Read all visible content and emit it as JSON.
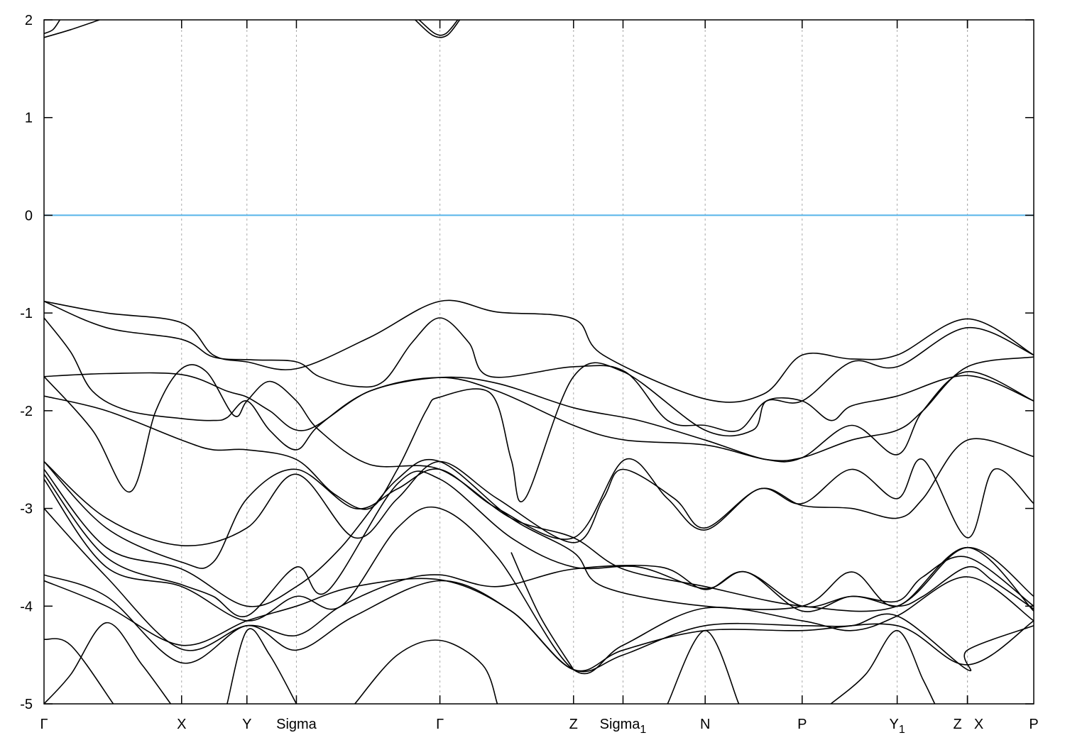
{
  "chart_data": {
    "type": "line",
    "title": "",
    "xlabel": "",
    "ylabel": "",
    "ylim": [
      -5,
      2
    ],
    "xlim": [
      0,
      1
    ],
    "yticks": [
      -5,
      -4,
      -3,
      -2,
      -1,
      0,
      1,
      2
    ],
    "xticks": [
      {
        "k": 0,
        "label": "Γ",
        "sub": ""
      },
      {
        "k": 0.139,
        "label": "X",
        "sub": ""
      },
      {
        "k": 0.205,
        "label": "Y",
        "sub": ""
      },
      {
        "k": 0.255,
        "label": "Sigma",
        "sub": ""
      },
      {
        "k": 0.4,
        "label": "Γ",
        "sub": ""
      },
      {
        "k": 0.535,
        "label": "Z",
        "sub": ""
      },
      {
        "k": 0.585,
        "label": "Sigma",
        "sub": "1"
      },
      {
        "k": 0.668,
        "label": "N",
        "sub": ""
      },
      {
        "k": 0.766,
        "label": "P",
        "sub": ""
      },
      {
        "k": 0.862,
        "label": "Y",
        "sub": "1"
      },
      {
        "k": 0.933,
        "label": "Z",
        "sub": "",
        "shift": "left"
      },
      {
        "k": 0.933,
        "label": "X",
        "sub": "",
        "shift": "right"
      },
      {
        "k": 1.0,
        "label": "P",
        "sub": ""
      }
    ],
    "grid": "vertical dashed at high-symmetry points",
    "fermi_level": 0,
    "colors": {
      "bands": "#000000",
      "fermi": "#56b4e9",
      "grid": "#aaaaaa"
    },
    "bands": [
      [
        [
          0,
          1.82
        ],
        [
          0.027,
          1.9
        ],
        [
          0.056,
          2.0
        ]
      ],
      [
        [
          0,
          1.86
        ],
        [
          0.009,
          1.9
        ],
        [
          0.016,
          2.0
        ]
      ],
      [
        [
          0.375,
          2.0
        ],
        [
          0.393,
          1.84
        ],
        [
          0.407,
          1.84
        ],
        [
          0.42,
          2.0
        ]
      ],
      [
        [
          0.379,
          2.0
        ],
        [
          0.395,
          1.86
        ],
        [
          0.406,
          1.86
        ],
        [
          0.418,
          2.0
        ]
      ],
      [
        [
          0,
          -0.88
        ],
        [
          0.063,
          -1.0
        ],
        [
          0.139,
          -1.1
        ],
        [
          0.171,
          -1.43
        ],
        [
          0.205,
          -1.5
        ],
        [
          0.255,
          -1.57
        ],
        [
          0.329,
          -1.25
        ],
        [
          0.4,
          -0.88
        ],
        [
          0.458,
          -0.99
        ],
        [
          0.535,
          -1.06
        ],
        [
          0.565,
          -1.43
        ],
        [
          0.668,
          -1.88
        ],
        [
          0.727,
          -1.83
        ],
        [
          0.766,
          -1.43
        ],
        [
          0.816,
          -1.47
        ],
        [
          0.862,
          -1.43
        ],
        [
          0.933,
          -1.06
        ],
        [
          1,
          -1.43
        ]
      ],
      [
        [
          0,
          -0.88
        ],
        [
          0.063,
          -1.15
        ],
        [
          0.139,
          -1.27
        ],
        [
          0.171,
          -1.45
        ],
        [
          0.211,
          -1.48
        ],
        [
          0.255,
          -1.5
        ],
        [
          0.278,
          -1.65
        ],
        [
          0.314,
          -1.75
        ],
        [
          0.343,
          -1.7
        ],
        [
          0.372,
          -1.3
        ],
        [
          0.4,
          -1.05
        ],
        [
          0.429,
          -1.3
        ],
        [
          0.451,
          -1.65
        ],
        [
          0.535,
          -1.55
        ],
        [
          0.587,
          -1.6
        ],
        [
          0.63,
          -2.1
        ],
        [
          0.668,
          -2.15
        ],
        [
          0.702,
          -2.2
        ],
        [
          0.73,
          -1.9
        ],
        [
          0.766,
          -1.9
        ],
        [
          0.816,
          -1.5
        ],
        [
          0.862,
          -1.55
        ],
        [
          0.933,
          -1.15
        ],
        [
          1,
          -1.43
        ]
      ],
      [
        [
          0,
          -1.05
        ],
        [
          0.027,
          -1.4
        ],
        [
          0.049,
          -1.8
        ],
        [
          0.085,
          -2.0
        ],
        [
          0.139,
          -2.08
        ],
        [
          0.171,
          -2.1
        ],
        [
          0.185,
          -2.07
        ],
        [
          0.205,
          -1.9
        ],
        [
          0.228,
          -2.2
        ],
        [
          0.255,
          -2.4
        ],
        [
          0.278,
          -2.15
        ],
        [
          0.329,
          -1.8
        ],
        [
          0.4,
          -1.66
        ],
        [
          0.458,
          -1.72
        ],
        [
          0.535,
          -1.97
        ],
        [
          0.601,
          -2.1
        ],
        [
          0.668,
          -2.3
        ],
        [
          0.73,
          -2.5
        ],
        [
          0.766,
          -2.48
        ],
        [
          0.816,
          -2.15
        ],
        [
          0.862,
          -2.45
        ],
        [
          0.888,
          -2.0
        ],
        [
          0.933,
          -1.6
        ],
        [
          1,
          -1.9
        ]
      ],
      [
        [
          0,
          -1.65
        ],
        [
          0.063,
          -1.62
        ],
        [
          0.139,
          -1.63
        ],
        [
          0.185,
          -1.8
        ],
        [
          0.205,
          -1.86
        ],
        [
          0.228,
          -2.0
        ],
        [
          0.264,
          -2.2
        ],
        [
          0.329,
          -1.8
        ],
        [
          0.4,
          -1.66
        ],
        [
          0.458,
          -1.8
        ],
        [
          0.535,
          -2.15
        ],
        [
          0.587,
          -2.3
        ],
        [
          0.668,
          -2.35
        ],
        [
          0.73,
          -2.5
        ],
        [
          0.766,
          -2.48
        ],
        [
          0.816,
          -2.3
        ],
        [
          0.862,
          -2.2
        ],
        [
          0.888,
          -2.0
        ],
        [
          0.933,
          -1.55
        ],
        [
          1,
          -1.45
        ]
      ],
      [
        [
          0,
          -1.65
        ],
        [
          0.049,
          -2.2
        ],
        [
          0.087,
          -2.83
        ],
        [
          0.113,
          -2.0
        ],
        [
          0.139,
          -1.57
        ],
        [
          0.164,
          -1.6
        ],
        [
          0.192,
          -2.05
        ],
        [
          0.205,
          -1.9
        ],
        [
          0.228,
          -1.7
        ],
        [
          0.255,
          -1.9
        ],
        [
          0.278,
          -2.2
        ],
        [
          0.329,
          -2.55
        ],
        [
          0.4,
          -2.6
        ],
        [
          0.472,
          -3.1
        ],
        [
          0.535,
          -3.3
        ],
        [
          0.585,
          -3.62
        ],
        [
          0.668,
          -3.8
        ],
        [
          0.766,
          -4.0
        ],
        [
          0.862,
          -4.0
        ],
        [
          0.933,
          -3.4
        ],
        [
          1,
          -3.9
        ]
      ],
      [
        [
          0,
          -1.85
        ],
        [
          0.063,
          -2.0
        ],
        [
          0.139,
          -2.3
        ],
        [
          0.171,
          -2.4
        ],
        [
          0.205,
          -2.4
        ],
        [
          0.255,
          -2.5
        ],
        [
          0.293,
          -2.85
        ],
        [
          0.329,
          -3.0
        ],
        [
          0.357,
          -2.6
        ],
        [
          0.386,
          -2.0
        ],
        [
          0.4,
          -1.86
        ],
        [
          0.451,
          -1.82
        ],
        [
          0.472,
          -2.5
        ],
        [
          0.486,
          -2.9
        ],
        [
          0.535,
          -1.65
        ],
        [
          0.585,
          -1.6
        ],
        [
          0.668,
          -2.2
        ],
        [
          0.716,
          -2.2
        ],
        [
          0.73,
          -1.9
        ],
        [
          0.766,
          -1.9
        ],
        [
          0.795,
          -2.1
        ],
        [
          0.816,
          -1.95
        ],
        [
          0.862,
          -1.85
        ],
        [
          0.933,
          -1.64
        ],
        [
          1,
          -1.9
        ]
      ],
      [
        [
          0,
          -2.52
        ],
        [
          0.063,
          -3.1
        ],
        [
          0.139,
          -3.38
        ],
        [
          0.205,
          -3.2
        ],
        [
          0.255,
          -2.65
        ],
        [
          0.314,
          -3.3
        ],
        [
          0.357,
          -2.9
        ],
        [
          0.4,
          -2.52
        ],
        [
          0.458,
          -2.9
        ],
        [
          0.535,
          -3.35
        ],
        [
          0.565,
          -2.9
        ],
        [
          0.585,
          -2.6
        ],
        [
          0.637,
          -2.9
        ],
        [
          0.668,
          -3.2
        ],
        [
          0.723,
          -2.8
        ],
        [
          0.766,
          -2.95
        ],
        [
          0.816,
          -2.6
        ],
        [
          0.862,
          -2.9
        ],
        [
          0.888,
          -2.5
        ],
        [
          0.933,
          -3.3
        ],
        [
          0.96,
          -2.6
        ],
        [
          1,
          -2.95
        ]
      ],
      [
        [
          0,
          -2.52
        ],
        [
          0.063,
          -3.2
        ],
        [
          0.139,
          -3.55
        ],
        [
          0.171,
          -3.55
        ],
        [
          0.205,
          -2.9
        ],
        [
          0.255,
          -2.6
        ],
        [
          0.314,
          -3.0
        ],
        [
          0.357,
          -2.8
        ],
        [
          0.4,
          -2.6
        ],
        [
          0.458,
          -3.0
        ],
        [
          0.535,
          -3.3
        ],
        [
          0.587,
          -2.5
        ],
        [
          0.63,
          -2.9
        ],
        [
          0.668,
          -3.22
        ],
        [
          0.723,
          -2.8
        ],
        [
          0.766,
          -2.97
        ],
        [
          0.816,
          -3.0
        ],
        [
          0.862,
          -3.1
        ],
        [
          0.888,
          -2.9
        ],
        [
          0.933,
          -2.3
        ],
        [
          1,
          -2.47
        ]
      ],
      [
        [
          0,
          -2.6
        ],
        [
          0.063,
          -3.4
        ],
        [
          0.139,
          -3.62
        ],
        [
          0.205,
          -4.0
        ],
        [
          0.255,
          -3.8
        ],
        [
          0.3,
          -3.4
        ],
        [
          0.357,
          -2.7
        ],
        [
          0.4,
          -2.52
        ],
        [
          0.472,
          -3.1
        ],
        [
          0.535,
          -3.45
        ],
        [
          0.565,
          -3.8
        ],
        [
          0.668,
          -4.0
        ],
        [
          0.766,
          -4.0
        ],
        [
          0.816,
          -3.65
        ],
        [
          0.862,
          -4.0
        ],
        [
          0.933,
          -3.4
        ],
        [
          1,
          -4.05
        ]
      ],
      [
        [
          0,
          -2.65
        ],
        [
          0.063,
          -3.5
        ],
        [
          0.139,
          -3.78
        ],
        [
          0.171,
          -3.9
        ],
        [
          0.205,
          -4.1
        ],
        [
          0.255,
          -3.6
        ],
        [
          0.286,
          -3.85
        ],
        [
          0.357,
          -2.75
        ],
        [
          0.4,
          -2.7
        ],
        [
          0.472,
          -3.3
        ],
        [
          0.535,
          -3.6
        ],
        [
          0.601,
          -3.6
        ],
        [
          0.668,
          -3.82
        ],
        [
          0.709,
          -3.65
        ],
        [
          0.766,
          -4.0
        ],
        [
          0.816,
          -3.9
        ],
        [
          0.862,
          -3.95
        ],
        [
          0.888,
          -3.7
        ],
        [
          0.933,
          -3.5
        ],
        [
          1,
          -4.0
        ]
      ],
      [
        [
          0,
          -2.7
        ],
        [
          0.063,
          -3.6
        ],
        [
          0.139,
          -3.8
        ],
        [
          0.205,
          -4.15
        ],
        [
          0.255,
          -3.9
        ],
        [
          0.3,
          -4.0
        ],
        [
          0.357,
          -3.2
        ],
        [
          0.4,
          -3.0
        ],
        [
          0.458,
          -3.5
        ],
        [
          0.535,
          -4.65
        ],
        [
          0.585,
          -4.4
        ],
        [
          0.668,
          -4.02
        ],
        [
          0.766,
          -4.15
        ],
        [
          0.816,
          -4.25
        ],
        [
          0.862,
          -4.1
        ],
        [
          0.933,
          -3.7
        ],
        [
          1,
          -4.15
        ]
      ],
      [
        [
          0,
          -3.0
        ],
        [
          0.063,
          -3.7
        ],
        [
          0.139,
          -4.44
        ],
        [
          0.205,
          -4.2
        ],
        [
          0.255,
          -4.3
        ],
        [
          0.3,
          -4.0
        ],
        [
          0.357,
          -3.75
        ],
        [
          0.4,
          -3.68
        ],
        [
          0.458,
          -3.8
        ],
        [
          0.535,
          -3.62
        ],
        [
          0.623,
          -3.6
        ],
        [
          0.668,
          -3.83
        ],
        [
          0.709,
          -3.65
        ],
        [
          0.766,
          -4.05
        ],
        [
          0.816,
          -3.9
        ],
        [
          0.862,
          -4.0
        ],
        [
          0.888,
          -3.9
        ],
        [
          0.933,
          -3.6
        ],
        [
          0.96,
          -3.75
        ],
        [
          1,
          -4.03
        ]
      ],
      [
        [
          0,
          -3.68
        ],
        [
          0.063,
          -3.9
        ],
        [
          0.139,
          -4.58
        ],
        [
          0.205,
          -4.2
        ],
        [
          0.255,
          -4.45
        ],
        [
          0.314,
          -4.1
        ],
        [
          0.4,
          -3.74
        ],
        [
          0.472,
          -4.05
        ],
        [
          0.535,
          -4.65
        ],
        [
          0.585,
          -4.5
        ],
        [
          0.668,
          -4.2
        ],
        [
          0.766,
          -4.2
        ],
        [
          0.816,
          -4.2
        ],
        [
          0.862,
          -4.1
        ],
        [
          0.933,
          -4.65
        ],
        [
          0.933,
          -4.45
        ],
        [
          1,
          -4.2
        ]
      ],
      [
        [
          0,
          -3.74
        ],
        [
          0.063,
          -4.0
        ],
        [
          0.139,
          -4.4
        ],
        [
          0.205,
          -4.15
        ],
        [
          0.255,
          -4.0
        ],
        [
          0.314,
          -3.8
        ],
        [
          0.4,
          -3.73
        ],
        [
          0.472,
          -4.05
        ],
        [
          0.535,
          -4.65
        ],
        [
          0.585,
          -4.45
        ],
        [
          0.668,
          -4.25
        ],
        [
          0.766,
          -4.25
        ],
        [
          0.862,
          -4.2
        ],
        [
          0.933,
          -4.6
        ],
        [
          1,
          -4.15
        ]
      ],
      [
        [
          0,
          -4.34
        ],
        [
          0.027,
          -4.4
        ],
        [
          0.07,
          -5.0
        ]
      ],
      [
        [
          0,
          -5.0
        ],
        [
          0.027,
          -4.7
        ],
        [
          0.063,
          -4.17
        ],
        [
          0.099,
          -4.6
        ],
        [
          0.128,
          -5.0
        ]
      ],
      [
        [
          0.314,
          -5.0
        ],
        [
          0.357,
          -4.5
        ],
        [
          0.4,
          -4.35
        ],
        [
          0.443,
          -4.6
        ],
        [
          0.458,
          -5.0
        ]
      ],
      [
        [
          0.185,
          -5.0
        ],
        [
          0.205,
          -4.25
        ],
        [
          0.228,
          -4.5
        ],
        [
          0.255,
          -5.0
        ]
      ],
      [
        [
          0.472,
          -3.45
        ],
        [
          0.501,
          -4.1
        ],
        [
          0.535,
          -4.65
        ]
      ],
      [
        [
          0.63,
          -5.0
        ],
        [
          0.668,
          -4.25
        ],
        [
          0.702,
          -5.0
        ]
      ],
      [
        [
          0.795,
          -5.0
        ],
        [
          0.83,
          -4.7
        ],
        [
          0.862,
          -4.25
        ],
        [
          0.888,
          -4.75
        ],
        [
          0.9,
          -5.0
        ]
      ]
    ]
  }
}
